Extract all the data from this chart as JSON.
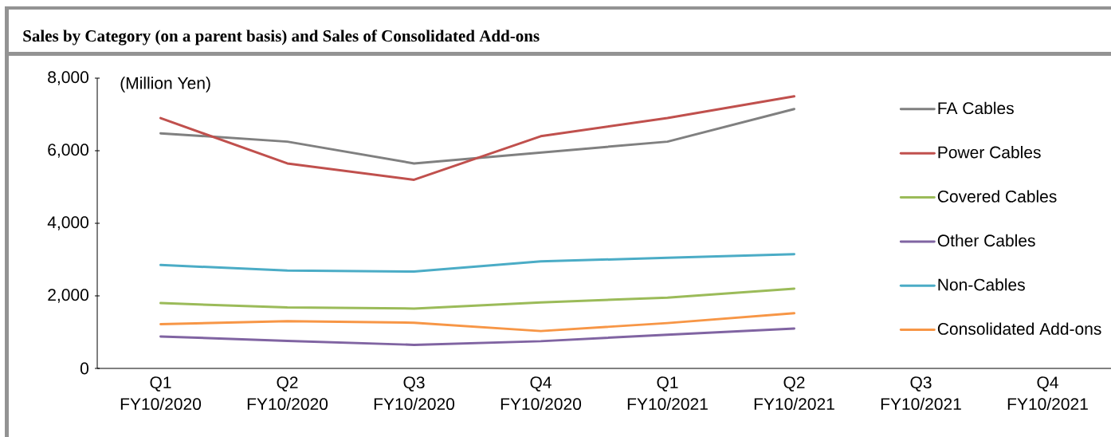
{
  "chart_data": {
    "type": "line",
    "title": "Sales by Category (on a parent basis) and Sales of Consolidated Add-ons",
    "ylabel": "(Million Yen)",
    "categories": [
      "Q1 FY10/2020",
      "Q2 FY10/2020",
      "Q3 FY10/2020",
      "Q4 FY10/2020",
      "Q1 FY10/2021",
      "Q2 FY10/2021",
      "Q3 FY10/2021",
      "Q4 FY10/2021"
    ],
    "series": [
      {
        "name": "FA Cables",
        "color": "#808080",
        "values": [
          6480,
          6250,
          5650,
          5950,
          6250,
          7150,
          null,
          null
        ]
      },
      {
        "name": "Power Cables",
        "color": "#c0504d",
        "values": [
          6900,
          5650,
          5200,
          6400,
          6900,
          7500,
          null,
          null
        ]
      },
      {
        "name": "Covered Cables",
        "color": "#9bbb59",
        "values": [
          1800,
          1680,
          1650,
          1820,
          1950,
          2200,
          null,
          null
        ]
      },
      {
        "name": "Other Cables",
        "color": "#8064a2",
        "values": [
          880,
          760,
          650,
          750,
          930,
          1100,
          null,
          null
        ]
      },
      {
        "name": "Non-Cables",
        "color": "#4bacc6",
        "values": [
          2850,
          2700,
          2670,
          2950,
          3050,
          3150,
          null,
          null
        ]
      },
      {
        "name": "Consolidated Add-ons",
        "color": "#f79646",
        "values": [
          1220,
          1300,
          1260,
          1030,
          1250,
          1520,
          null,
          null
        ]
      }
    ],
    "ylim": [
      0,
      8000
    ],
    "yticks": [
      0,
      {
        "value": 2000,
        "label": "2,000"
      },
      {
        "value": 4000,
        "label": "4,000"
      },
      {
        "value": 6000,
        "label": "6,000"
      },
      {
        "value": 8000,
        "label": "8,000"
      }
    ],
    "legend": "right",
    "grid": false,
    "marker": "none",
    "line_style": "solid"
  }
}
